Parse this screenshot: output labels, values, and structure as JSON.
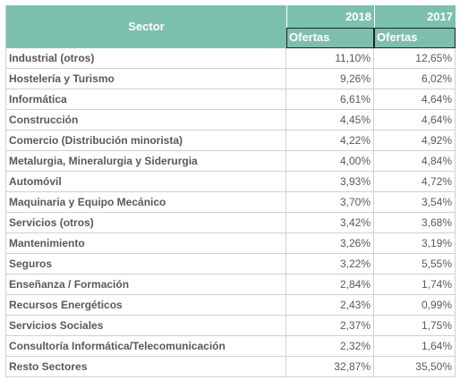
{
  "table": {
    "header": {
      "sector": "Sector",
      "years": [
        "2018",
        "2017"
      ],
      "sub": [
        "Ofertas",
        "Ofertas"
      ]
    },
    "rows": [
      [
        "Industrial (otros)",
        "11,10%",
        "12,65%"
      ],
      [
        "Hostelería y Turismo",
        "9,26%",
        "6,02%"
      ],
      [
        "Informática",
        "6,61%",
        "4,64%"
      ],
      [
        "Construcción",
        "4,45%",
        "4,64%"
      ],
      [
        "Comercio (Distribución minorista)",
        "4,22%",
        "4,92%"
      ],
      [
        "Metalurgia, Mineralurgia y Siderurgia",
        "4,00%",
        "4,84%"
      ],
      [
        "Automóvil",
        "3,93%",
        "4,72%"
      ],
      [
        "Maquinaria y Equipo Mecánico",
        "3,70%",
        "3,54%"
      ],
      [
        "Servicios (otros)",
        "3,42%",
        "3,68%"
      ],
      [
        "Mantenimiento",
        "3,26%",
        "3,19%"
      ],
      [
        "Seguros",
        "3,22%",
        "5,55%"
      ],
      [
        "Enseñanza / Formación",
        "2,84%",
        "1,74%"
      ],
      [
        "Recursos Energéticos",
        "2,43%",
        "0,99%"
      ],
      [
        "Servicios Sociales",
        "2,37%",
        "1,75%"
      ],
      [
        "Consultoría Informática/Telecomunicación",
        "2,32%",
        "1,64%"
      ],
      [
        "Resto Sectores",
        "32,87%",
        "35,50%"
      ]
    ]
  }
}
